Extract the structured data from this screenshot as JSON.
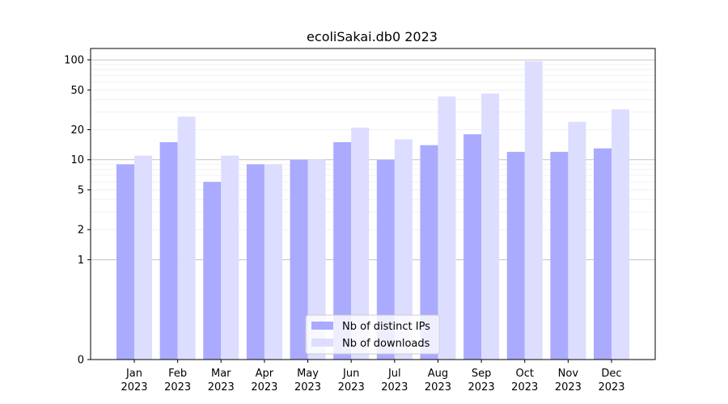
{
  "chart_data": {
    "type": "bar",
    "title": "ecoliSakai.db0 2023",
    "xlabel": "",
    "ylabel": "",
    "y_scale": "symlog",
    "ylim": [
      0,
      130
    ],
    "yticks": [
      0,
      1,
      2,
      5,
      10,
      20,
      50,
      100
    ],
    "ytick_labels": [
      "0",
      "1",
      "2",
      "5",
      "10",
      "20",
      "50",
      "100"
    ],
    "categories": [
      "Jan",
      "Feb",
      "Mar",
      "Apr",
      "May",
      "Jun",
      "Jul",
      "Aug",
      "Sep",
      "Oct",
      "Nov",
      "Dec"
    ],
    "category_sublabel": "2023",
    "series": [
      {
        "name": "Nb of distinct IPs",
        "color": "#aaaaff",
        "values": [
          9,
          15,
          6,
          9,
          10,
          15,
          10,
          14,
          18,
          12,
          12,
          13
        ]
      },
      {
        "name": "Nb of downloads",
        "color": "#ddddff",
        "values": [
          11,
          27,
          11,
          9,
          10,
          21,
          16,
          43,
          46,
          97,
          24,
          32
        ]
      }
    ],
    "grid": true,
    "legend_position": "lower-center"
  }
}
